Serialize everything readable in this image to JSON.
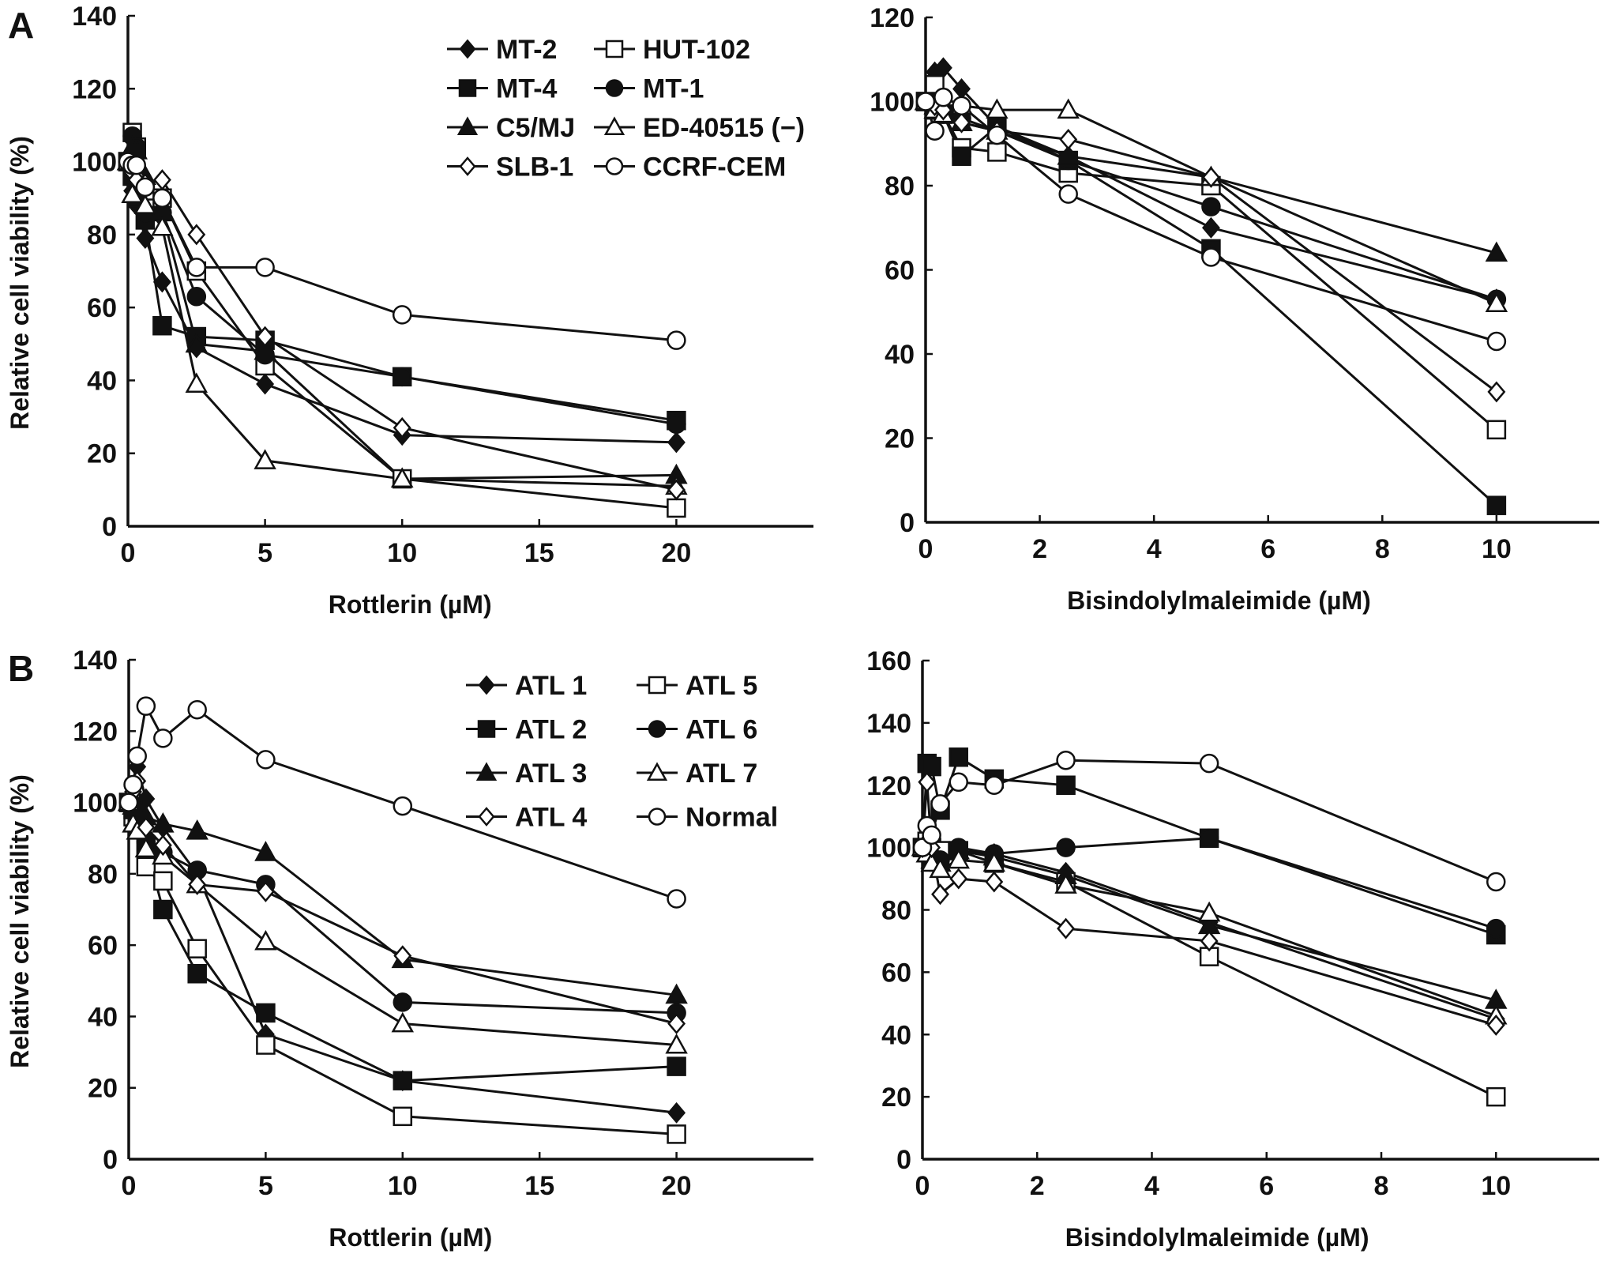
{
  "figure": {
    "panel_labels": [
      "A",
      "B"
    ],
    "colors": {
      "ink": "#111111",
      "open_fill": "#ffffff"
    }
  },
  "chart_data": [
    {
      "id": "A-left",
      "panel": "A",
      "type": "line",
      "title": "",
      "xlabel": "Rottlerin (µM)",
      "ylabel": "Relative cell viability (%)",
      "xlim": [
        0,
        25
      ],
      "ylim": [
        0,
        140
      ],
      "xticks": [
        0,
        5,
        10,
        15,
        20
      ],
      "yticks": [
        0,
        20,
        40,
        60,
        80,
        100,
        120,
        140
      ],
      "grid": false,
      "legend_position": "top-right",
      "x": [
        0,
        0.16,
        0.31,
        0.63,
        1.25,
        2.5,
        5,
        10,
        20
      ],
      "series": [
        {
          "name": "MT-2",
          "marker": "diamond",
          "filled": true,
          "values": [
            100,
            92,
            88,
            79,
            67,
            49,
            39,
            25,
            23
          ]
        },
        {
          "name": "HUT-102",
          "marker": "square",
          "filled": false,
          "values": [
            100,
            108,
            104,
            92,
            90,
            70,
            44,
            13,
            5
          ]
        },
        {
          "name": "MT-4",
          "marker": "square",
          "filled": true,
          "values": [
            100,
            96,
            90,
            84,
            55,
            52,
            51,
            41,
            29
          ]
        },
        {
          "name": "MT-1",
          "marker": "circle",
          "filled": true,
          "values": [
            100,
            107,
            104,
            86,
            86,
            63,
            47,
            41,
            28
          ]
        },
        {
          "name": "C5/MJ",
          "marker": "triangle",
          "filled": true,
          "values": [
            100,
            104,
            103,
            96,
            86,
            50,
            48,
            13,
            14
          ]
        },
        {
          "name": "ED-40515 (−)",
          "marker": "triangle",
          "filled": false,
          "values": [
            100,
            91,
            97,
            88,
            82,
            39,
            18,
            13,
            11
          ]
        },
        {
          "name": "SLB-1",
          "marker": "diamond",
          "filled": false,
          "values": [
            100,
            97,
            95,
            94,
            95,
            80,
            52,
            27,
            10
          ]
        },
        {
          "name": "CCRF-CEM",
          "marker": "circle",
          "filled": false,
          "values": [
            100,
            99,
            99,
            93,
            90,
            71,
            71,
            58,
            51
          ]
        }
      ]
    },
    {
      "id": "A-right",
      "panel": "A",
      "type": "line",
      "title": "",
      "xlabel": "Bisindolylmaleimide (µM)",
      "ylabel": "",
      "xlim": [
        0,
        11.8
      ],
      "ylim": [
        0,
        120
      ],
      "xticks": [
        0,
        2,
        4,
        6,
        8,
        10
      ],
      "yticks": [
        0,
        20,
        40,
        60,
        80,
        100,
        120
      ],
      "grid": false,
      "x": [
        0,
        0.16,
        0.31,
        0.63,
        1.25,
        2.5,
        5,
        10
      ],
      "series": [
        {
          "name": "MT-2",
          "marker": "diamond",
          "filled": true,
          "values": [
            100,
            107,
            108,
            103,
            94,
            87,
            70,
            53
          ]
        },
        {
          "name": "HUT-102",
          "marker": "square",
          "filled": false,
          "values": [
            100,
            104,
            97,
            89,
            88,
            83,
            80,
            22
          ]
        },
        {
          "name": "MT-4",
          "marker": "square",
          "filled": true,
          "values": [
            100,
            98,
            97,
            87,
            94,
            86,
            65,
            4
          ]
        },
        {
          "name": "MT-1",
          "marker": "circle",
          "filled": true,
          "values": [
            100,
            99,
            97,
            96,
            93,
            86,
            75,
            53
          ]
        },
        {
          "name": "C5/MJ",
          "marker": "triangle",
          "filled": true,
          "values": [
            100,
            99,
            98,
            95,
            93,
            87,
            82,
            64
          ]
        },
        {
          "name": "ED-40515 (−)",
          "marker": "triangle",
          "filled": false,
          "values": [
            100,
            98,
            97,
            99,
            98,
            98,
            82,
            52
          ]
        },
        {
          "name": "SLB-1",
          "marker": "diamond",
          "filled": false,
          "values": [
            100,
            99,
            98,
            95,
            93,
            91,
            82,
            31
          ]
        },
        {
          "name": "CCRF-CEM",
          "marker": "circle",
          "filled": false,
          "values": [
            100,
            93,
            101,
            99,
            92,
            78,
            63,
            43
          ]
        }
      ]
    },
    {
      "id": "B-left",
      "panel": "B",
      "type": "line",
      "title": "",
      "xlabel": "Rottlerin (µM)",
      "ylabel": "Relative cell viability (%)",
      "xlim": [
        0,
        25
      ],
      "ylim": [
        0,
        140
      ],
      "xticks": [
        0,
        5,
        10,
        15,
        20
      ],
      "yticks": [
        0,
        20,
        40,
        60,
        80,
        100,
        120,
        140
      ],
      "grid": false,
      "legend_position": "top-right",
      "x": [
        0,
        0.16,
        0.31,
        0.63,
        1.25,
        2.5,
        5,
        10,
        20
      ],
      "series": [
        {
          "name": "ATL 1",
          "marker": "diamond",
          "filled": true,
          "values": [
            100,
            104,
            110,
            101,
            93,
            80,
            35,
            22,
            13
          ]
        },
        {
          "name": "ATL 5",
          "marker": "square",
          "filled": false,
          "values": [
            100,
            96,
            95,
            82,
            78,
            59,
            32,
            12,
            7
          ]
        },
        {
          "name": "ATL 2",
          "marker": "square",
          "filled": true,
          "values": [
            100,
            98,
            96,
            88,
            70,
            52,
            41,
            22,
            26
          ]
        },
        {
          "name": "ATL 6",
          "marker": "circle",
          "filled": true,
          "values": [
            100,
            98,
            97,
            89,
            86,
            81,
            77,
            44,
            41
          ]
        },
        {
          "name": "ATL 3",
          "marker": "triangle",
          "filled": true,
          "values": [
            100,
            99,
            98,
            96,
            94,
            92,
            86,
            56,
            46
          ]
        },
        {
          "name": "ATL 7",
          "marker": "triangle",
          "filled": false,
          "values": [
            100,
            94,
            92,
            87,
            85,
            77,
            61,
            38,
            32
          ]
        },
        {
          "name": "ATL 4",
          "marker": "diamond",
          "filled": false,
          "values": [
            100,
            103,
            106,
            93,
            88,
            77,
            75,
            57,
            38
          ]
        },
        {
          "name": "Normal",
          "marker": "circle",
          "filled": false,
          "values": [
            100,
            105,
            113,
            127,
            118,
            126,
            112,
            99,
            73
          ]
        }
      ]
    },
    {
      "id": "B-right",
      "panel": "B",
      "type": "line",
      "title": "",
      "xlabel": "Bisindolylmaleimide (µM)",
      "ylabel": "",
      "xlim": [
        0,
        11.8
      ],
      "ylim": [
        0,
        160
      ],
      "xticks": [
        0,
        2,
        4,
        6,
        8,
        10
      ],
      "yticks": [
        0,
        20,
        40,
        60,
        80,
        100,
        120,
        140,
        160
      ],
      "grid": false,
      "x": [
        0,
        0.08,
        0.16,
        0.31,
        0.63,
        1.25,
        2.5,
        5,
        10
      ],
      "series": [
        {
          "name": "ATL 1",
          "marker": "diamond",
          "filled": true,
          "values": [
            100,
            101,
            100,
            98,
            99,
            98,
            92,
            76,
            45
          ]
        },
        {
          "name": "ATL 5",
          "marker": "square",
          "filled": false,
          "values": [
            100,
            102,
            100,
            99,
            99,
            95,
            89,
            65,
            20
          ]
        },
        {
          "name": "ATL 2",
          "marker": "square",
          "filled": true,
          "values": [
            100,
            127,
            126,
            112,
            129,
            122,
            120,
            103,
            72
          ]
        },
        {
          "name": "ATL 6",
          "marker": "circle",
          "filled": true,
          "values": [
            100,
            99,
            97,
            96,
            100,
            98,
            100,
            103,
            74
          ]
        },
        {
          "name": "ATL 3",
          "marker": "triangle",
          "filled": true,
          "values": [
            100,
            98,
            96,
            95,
            99,
            97,
            91,
            75,
            51
          ]
        },
        {
          "name": "ATL 7",
          "marker": "triangle",
          "filled": false,
          "values": [
            100,
            98,
            95,
            93,
            96,
            95,
            88,
            79,
            46
          ]
        },
        {
          "name": "ATL 4",
          "marker": "diamond",
          "filled": false,
          "values": [
            100,
            121,
            100,
            85,
            90,
            89,
            74,
            70,
            43
          ]
        },
        {
          "name": "Normal",
          "marker": "circle",
          "filled": false,
          "values": [
            100,
            107,
            104,
            114,
            121,
            120,
            128,
            127,
            89
          ]
        }
      ]
    }
  ]
}
